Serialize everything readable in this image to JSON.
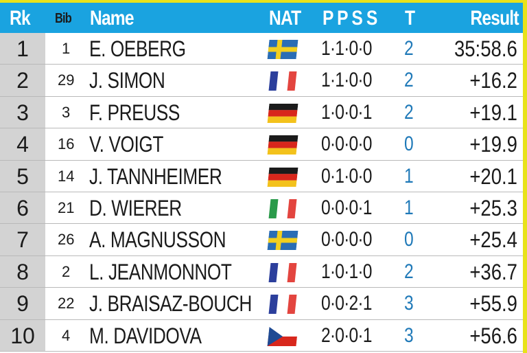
{
  "header": {
    "rank": "Rk",
    "bib": "Bib",
    "name": "Name",
    "nat": "NAT",
    "shooting": "P P S S",
    "total": "T",
    "result": "Result"
  },
  "colors": {
    "header_bg": "#1aa3e0",
    "rank_bg": "#d3d3d3",
    "total_text": "#1f79b8",
    "accent": "#e8e21a"
  },
  "rows": [
    {
      "rank": "1",
      "bib": "1",
      "name": "E. OEBERG",
      "nat": "swedish-flag",
      "shooting": "1·1·0·0",
      "total": "2",
      "result": "35:58.6"
    },
    {
      "rank": "2",
      "bib": "29",
      "name": "J. SIMON",
      "nat": "french-flag",
      "shooting": "1·1·0·0",
      "total": "2",
      "result": "+16.2"
    },
    {
      "rank": "3",
      "bib": "3",
      "name": "F. PREUSS",
      "nat": "german-flag",
      "shooting": "1·0·0·1",
      "total": "2",
      "result": "+19.1"
    },
    {
      "rank": "4",
      "bib": "16",
      "name": "V. VOIGT",
      "nat": "german-flag",
      "shooting": "0·0·0·0",
      "total": "0",
      "result": "+19.9"
    },
    {
      "rank": "5",
      "bib": "14",
      "name": "J. TANNHEIMER",
      "nat": "german-flag",
      "shooting": "0·1·0·0",
      "total": "1",
      "result": "+20.1"
    },
    {
      "rank": "6",
      "bib": "21",
      "name": "D. WIERER",
      "nat": "italian-flag",
      "shooting": "0·0·0·1",
      "total": "1",
      "result": "+25.3"
    },
    {
      "rank": "7",
      "bib": "26",
      "name": "A. MAGNUSSON",
      "nat": "swedish-flag",
      "shooting": "0·0·0·0",
      "total": "0",
      "result": "+25.4"
    },
    {
      "rank": "8",
      "bib": "2",
      "name": "L. JEANMONNOT",
      "nat": "french-flag",
      "shooting": "1·0·1·0",
      "total": "2",
      "result": "+36.7"
    },
    {
      "rank": "9",
      "bib": "22",
      "name": "J. BRAISAZ-BOUCH",
      "nat": "french-flag",
      "shooting": "0·0·2·1",
      "total": "3",
      "result": "+55.9"
    },
    {
      "rank": "10",
      "bib": "4",
      "name": "M. DAVIDOVA",
      "nat": "czech-flag",
      "shooting": "2·0·0·1",
      "total": "3",
      "result": "+56.6"
    }
  ]
}
